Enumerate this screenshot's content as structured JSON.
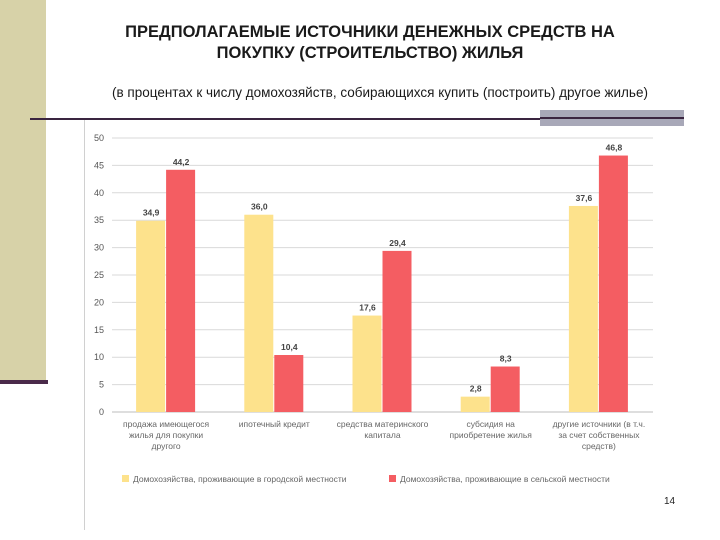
{
  "slide": {
    "title_line1": "ПРЕДПОЛАГАЕМЫЕ ИСТОЧНИКИ ДЕНЕЖНЫХ СРЕДСТВ НА",
    "title_line2": "ПОКУПКУ (СТРОИТЕЛЬСТВО) ЖИЛЬЯ",
    "subtitle": "(в процентах к числу домохозяйств, собирающихся купить (построить) другое жилье)",
    "page_number": "14"
  },
  "colors": {
    "urban": "#fde28c",
    "rural": "#f45d62",
    "band": "#d7d2a8"
  },
  "chart_data": {
    "type": "bar",
    "categories": [
      [
        "продажа имеющегося",
        "жилья для покупки",
        "другого"
      ],
      [
        "ипотечный кредит"
      ],
      [
        "средства материнского",
        "капитала"
      ],
      [
        "субсидия на",
        "приобретение жилья"
      ],
      [
        "другие источники (в т.ч.",
        "за счет собственных",
        "средств)"
      ]
    ],
    "series": [
      {
        "name": "Домохозяйства, проживающие в городской местности",
        "values": [
          34.9,
          36.0,
          17.6,
          2.8,
          37.6
        ],
        "labels": [
          "34,9",
          "36,0",
          "17,6",
          "2,8",
          "37,6"
        ]
      },
      {
        "name": "Домохозяйства, проживающие в сельской местности",
        "values": [
          44.2,
          10.4,
          29.4,
          8.3,
          46.8
        ],
        "labels": [
          "44,2",
          "10,4",
          "29,4",
          "8,3",
          "46,8"
        ]
      }
    ],
    "yticks": [
      0,
      5,
      10,
      15,
      20,
      25,
      30,
      35,
      40,
      45,
      50
    ],
    "ylim": [
      0,
      50
    ],
    "grid": true,
    "legend": "bottom"
  }
}
